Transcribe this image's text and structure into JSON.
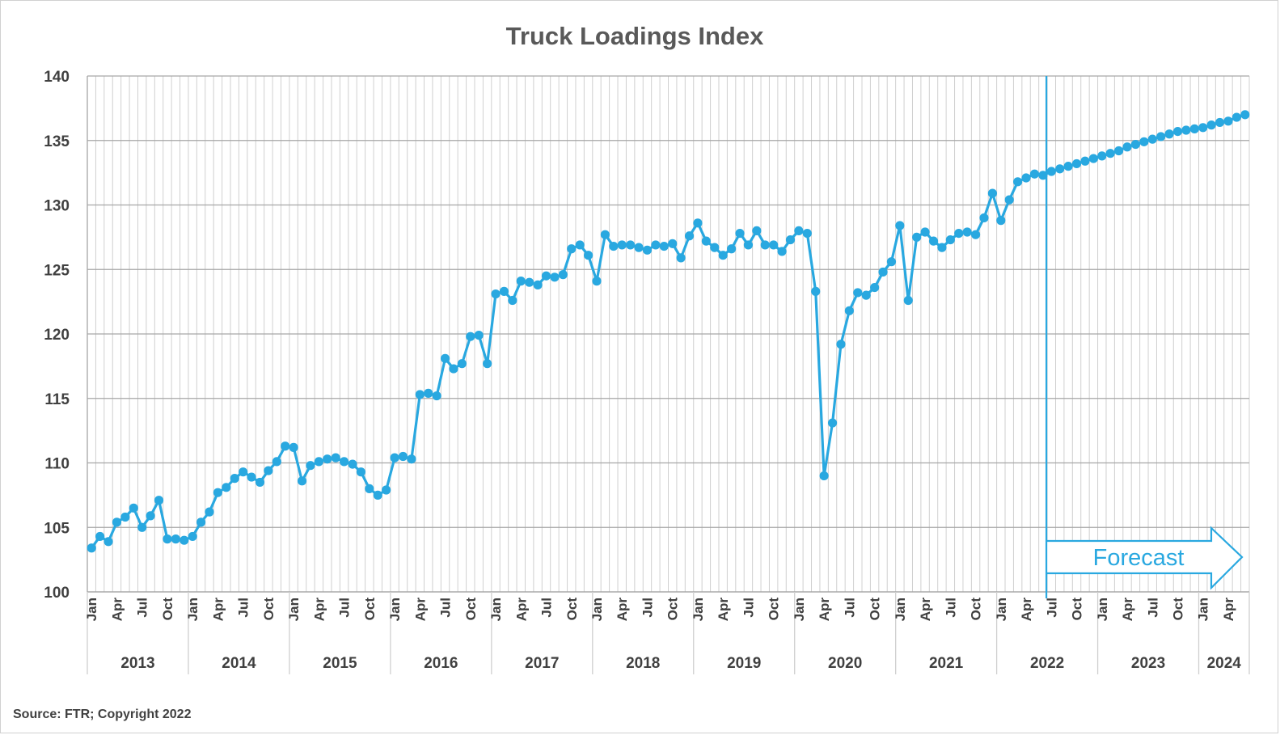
{
  "chart_data": {
    "type": "line",
    "title": "Truck Loadings Index",
    "source": "Source: FTR; Copyright 2022",
    "ylim": [
      100,
      140
    ],
    "yticks": [
      100,
      105,
      110,
      115,
      120,
      125,
      130,
      135,
      140
    ],
    "grid": true,
    "color": "#29a8e0",
    "x_start": "2013-01",
    "x_end": "2024-06",
    "month_labels": [
      "Jan",
      "Apr",
      "Jul",
      "Oct"
    ],
    "years": [
      "2013",
      "2014",
      "2015",
      "2016",
      "2017",
      "2018",
      "2019",
      "2020",
      "2021",
      "2022",
      "2023",
      "2024"
    ],
    "forecast_start": "2022-07",
    "forecast_label": "Forecast",
    "series": [
      {
        "values": [
          103.4,
          104.3,
          103.9,
          105.4,
          105.8,
          106.5,
          105.0,
          105.9,
          107.1,
          104.1,
          104.1,
          104.0,
          104.3,
          105.4,
          106.2,
          107.7,
          108.1,
          108.8,
          109.3,
          108.9,
          108.5,
          109.4,
          110.1,
          111.3,
          111.2,
          108.6,
          109.8,
          110.1,
          110.3,
          110.4,
          110.1,
          109.9,
          109.3,
          108.0,
          107.5,
          107.9,
          110.4,
          110.5,
          110.3,
          115.3,
          115.4,
          115.2,
          118.1,
          117.3,
          117.7,
          119.8,
          119.9,
          117.7,
          123.1,
          123.3,
          122.6,
          124.1,
          124.0,
          123.8,
          124.5,
          124.4,
          124.6,
          126.6,
          126.9,
          126.1,
          124.1,
          127.7,
          126.8,
          126.9,
          126.9,
          126.7,
          126.5,
          126.9,
          126.8,
          127.0,
          125.9,
          127.6,
          128.6,
          127.2,
          126.7,
          126.1,
          126.6,
          127.8,
          126.9,
          128.0,
          126.9,
          126.9,
          126.4,
          127.3,
          128.0,
          127.8,
          123.3,
          109.0,
          113.1,
          119.2,
          121.8,
          123.2,
          123.0,
          123.6,
          124.8,
          125.6,
          128.4,
          122.6,
          127.5,
          127.9,
          127.2,
          126.7,
          127.3,
          127.8,
          127.9,
          127.7,
          129.0,
          130.9,
          128.8,
          130.4,
          131.8,
          132.1,
          132.4,
          132.3,
          132.6,
          132.8,
          133.0,
          133.2,
          133.4,
          133.6,
          133.8,
          134.0,
          134.2,
          134.5,
          134.7,
          134.9,
          135.1,
          135.3,
          135.5,
          135.7,
          135.8,
          135.9,
          136.0,
          136.2,
          136.4,
          136.5,
          136.8,
          137.0
        ]
      }
    ]
  }
}
